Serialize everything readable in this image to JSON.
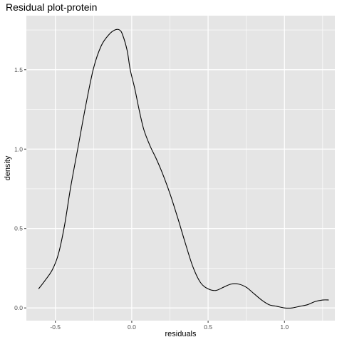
{
  "chart_data": {
    "type": "line",
    "title": "Residual plot-protein",
    "xlabel": "residuals",
    "ylabel": "density",
    "xlim": [
      -0.69,
      1.33
    ],
    "ylim": [
      -0.08,
      1.84
    ],
    "x_ticks": [
      -0.5,
      0.0,
      0.5,
      1.0
    ],
    "x_tick_labels": [
      "-0.5",
      "0.0",
      "0.5",
      "1.0"
    ],
    "y_ticks": [
      0.0,
      0.5,
      1.0,
      1.5
    ],
    "y_tick_labels": [
      "0.0",
      "0.5",
      "1.0",
      "1.5"
    ],
    "grid": true,
    "panel_background": "#e5e5e5",
    "grid_color": "#ffffff",
    "line_color": "#000000",
    "series": [
      {
        "x": [
          -0.61,
          -0.57,
          -0.52,
          -0.48,
          -0.44,
          -0.4,
          -0.35,
          -0.3,
          -0.25,
          -0.2,
          -0.15,
          -0.11,
          -0.08,
          -0.06,
          -0.03,
          -0.01,
          0.02,
          0.05,
          0.08,
          0.12,
          0.16,
          0.2,
          0.25,
          0.3,
          0.35,
          0.4,
          0.45,
          0.5,
          0.55,
          0.6,
          0.65,
          0.7,
          0.75,
          0.8,
          0.85,
          0.9,
          0.95,
          1.0,
          1.05,
          1.1,
          1.15,
          1.2,
          1.25,
          1.29
        ],
        "y": [
          0.12,
          0.17,
          0.24,
          0.34,
          0.52,
          0.76,
          1.02,
          1.28,
          1.51,
          1.65,
          1.72,
          1.75,
          1.75,
          1.72,
          1.62,
          1.5,
          1.38,
          1.24,
          1.12,
          1.02,
          0.94,
          0.85,
          0.72,
          0.57,
          0.41,
          0.26,
          0.16,
          0.12,
          0.11,
          0.13,
          0.15,
          0.15,
          0.13,
          0.09,
          0.05,
          0.02,
          0.01,
          0.0,
          0.0,
          0.01,
          0.02,
          0.04,
          0.05,
          0.05
        ]
      }
    ]
  }
}
